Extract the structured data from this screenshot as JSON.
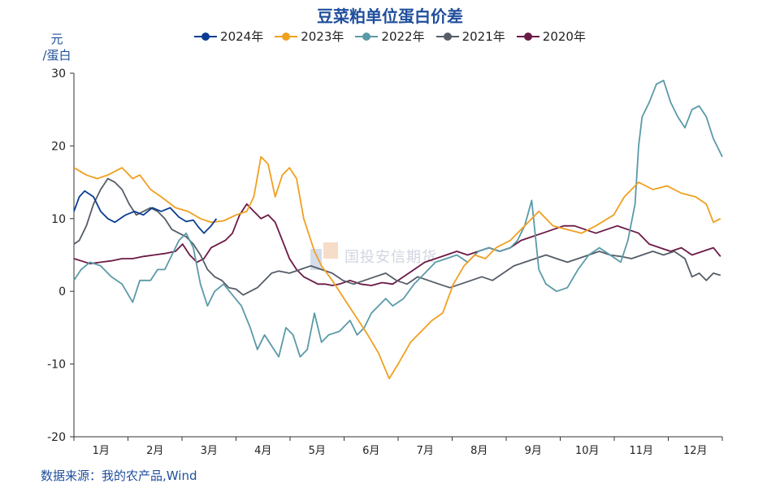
{
  "chart_data": {
    "type": "line",
    "title": "豆菜粕单位蛋白价差",
    "ylabel_line1": "元",
    "ylabel_line2": "/蛋白",
    "ylim": [
      -20,
      30
    ],
    "yticks": [
      -20,
      -10,
      0,
      10,
      20,
      30
    ],
    "months": [
      "1月",
      "2月",
      "3月",
      "4月",
      "5月",
      "6月",
      "7月",
      "8月",
      "9月",
      "10月",
      "11月",
      "12月"
    ],
    "x_unit": "day of year (1-365)",
    "grid": false,
    "legend_position": "top",
    "series": [
      {
        "name": "2024年",
        "color": "#0a3d91",
        "points": [
          [
            1,
            11
          ],
          [
            4,
            13
          ],
          [
            7,
            13.8
          ],
          [
            12,
            13
          ],
          [
            16,
            11
          ],
          [
            20,
            10
          ],
          [
            24,
            9.5
          ],
          [
            30,
            10.5
          ],
          [
            35,
            11
          ],
          [
            40,
            10.5
          ],
          [
            45,
            11.5
          ],
          [
            50,
            11
          ],
          [
            55,
            11.5
          ],
          [
            60,
            10.2
          ],
          [
            64,
            9.6
          ],
          [
            68,
            9.8
          ],
          [
            71,
            8.8
          ],
          [
            74,
            8
          ],
          [
            78,
            9
          ],
          [
            81,
            10
          ]
        ]
      },
      {
        "name": "2023年",
        "color": "#f0a020",
        "points": [
          [
            1,
            17
          ],
          [
            8,
            16
          ],
          [
            14,
            15.5
          ],
          [
            20,
            16
          ],
          [
            28,
            17
          ],
          [
            34,
            15.5
          ],
          [
            38,
            16
          ],
          [
            44,
            14
          ],
          [
            50,
            13
          ],
          [
            58,
            11.5
          ],
          [
            65,
            11
          ],
          [
            72,
            10
          ],
          [
            78,
            9.5
          ],
          [
            85,
            9.7
          ],
          [
            92,
            10.5
          ],
          [
            98,
            11
          ],
          [
            102,
            13
          ],
          [
            106,
            18.5
          ],
          [
            110,
            17.5
          ],
          [
            114,
            13
          ],
          [
            118,
            16
          ],
          [
            122,
            17
          ],
          [
            126,
            15.5
          ],
          [
            130,
            10
          ],
          [
            136,
            5.5
          ],
          [
            140,
            3.5
          ],
          [
            146,
            1.5
          ],
          [
            150,
            0
          ],
          [
            154,
            -1.5
          ],
          [
            158,
            -3
          ],
          [
            162,
            -4.5
          ],
          [
            166,
            -6
          ],
          [
            172,
            -8.5
          ],
          [
            178,
            -12
          ],
          [
            183,
            -10
          ],
          [
            190,
            -7
          ],
          [
            196,
            -5.5
          ],
          [
            202,
            -4
          ],
          [
            208,
            -3
          ],
          [
            214,
            1
          ],
          [
            220,
            3.5
          ],
          [
            226,
            5
          ],
          [
            232,
            4.5
          ],
          [
            238,
            6
          ],
          [
            246,
            7
          ],
          [
            254,
            9
          ],
          [
            262,
            11
          ],
          [
            270,
            9
          ],
          [
            278,
            8.5
          ],
          [
            286,
            8
          ],
          [
            294,
            9
          ],
          [
            304,
            10.5
          ],
          [
            310,
            13
          ],
          [
            318,
            15
          ],
          [
            326,
            14
          ],
          [
            334,
            14.5
          ],
          [
            342,
            13.5
          ],
          [
            350,
            13
          ],
          [
            356,
            12
          ],
          [
            360,
            9.5
          ],
          [
            364,
            10
          ]
        ]
      },
      {
        "name": "2022年",
        "color": "#5a9aa8",
        "points": [
          [
            1,
            1.5
          ],
          [
            5,
            3
          ],
          [
            10,
            4
          ],
          [
            16,
            3.5
          ],
          [
            22,
            2
          ],
          [
            28,
            1
          ],
          [
            34,
            -1.5
          ],
          [
            38,
            1.5
          ],
          [
            44,
            1.5
          ],
          [
            48,
            3
          ],
          [
            52,
            3
          ],
          [
            56,
            5
          ],
          [
            60,
            7
          ],
          [
            64,
            8
          ],
          [
            68,
            6
          ],
          [
            72,
            1
          ],
          [
            76,
            -2
          ],
          [
            80,
            0
          ],
          [
            85,
            1
          ],
          [
            90,
            -0.5
          ],
          [
            95,
            -2
          ],
          [
            100,
            -5
          ],
          [
            104,
            -8
          ],
          [
            108,
            -6
          ],
          [
            112,
            -7.5
          ],
          [
            116,
            -9
          ],
          [
            120,
            -5
          ],
          [
            124,
            -6
          ],
          [
            128,
            -9
          ],
          [
            132,
            -8
          ],
          [
            136,
            -3
          ],
          [
            140,
            -7
          ],
          [
            144,
            -6
          ],
          [
            150,
            -5.5
          ],
          [
            156,
            -4
          ],
          [
            160,
            -6
          ],
          [
            164,
            -5
          ],
          [
            168,
            -3
          ],
          [
            172,
            -2
          ],
          [
            176,
            -1
          ],
          [
            180,
            -2
          ],
          [
            186,
            -1
          ],
          [
            192,
            1
          ],
          [
            198,
            2.5
          ],
          [
            204,
            4
          ],
          [
            210,
            4.5
          ],
          [
            216,
            5
          ],
          [
            222,
            4
          ],
          [
            228,
            5.5
          ],
          [
            234,
            6
          ],
          [
            240,
            5.5
          ],
          [
            246,
            6
          ],
          [
            250,
            7
          ],
          [
            254,
            9
          ],
          [
            258,
            12.5
          ],
          [
            262,
            3
          ],
          [
            266,
            1
          ],
          [
            272,
            0
          ],
          [
            278,
            0.5
          ],
          [
            284,
            3
          ],
          [
            290,
            5
          ],
          [
            296,
            6
          ],
          [
            302,
            5
          ],
          [
            308,
            4
          ],
          [
            312,
            7
          ],
          [
            316,
            12
          ],
          [
            318,
            20
          ],
          [
            320,
            24
          ],
          [
            324,
            26
          ],
          [
            328,
            28.5
          ],
          [
            332,
            29
          ],
          [
            336,
            26
          ],
          [
            340,
            24
          ],
          [
            344,
            22.5
          ],
          [
            348,
            25
          ],
          [
            352,
            25.5
          ],
          [
            356,
            24
          ],
          [
            360,
            21
          ],
          [
            363,
            19.5
          ],
          [
            365,
            18.5
          ]
        ]
      },
      {
        "name": "2021年",
        "color": "#555d67",
        "points": [
          [
            1,
            6.5
          ],
          [
            4,
            7
          ],
          [
            8,
            9
          ],
          [
            12,
            12
          ],
          [
            16,
            14
          ],
          [
            20,
            15.5
          ],
          [
            24,
            15
          ],
          [
            28,
            14
          ],
          [
            32,
            12
          ],
          [
            36,
            10.5
          ],
          [
            40,
            11
          ],
          [
            44,
            11.5
          ],
          [
            48,
            11
          ],
          [
            52,
            10
          ],
          [
            56,
            8.5
          ],
          [
            60,
            8
          ],
          [
            64,
            7.5
          ],
          [
            68,
            6.5
          ],
          [
            72,
            5
          ],
          [
            76,
            3
          ],
          [
            80,
            2
          ],
          [
            84,
            1.5
          ],
          [
            88,
            0.5
          ],
          [
            92,
            0.3
          ],
          [
            96,
            -0.5
          ],
          [
            100,
            0
          ],
          [
            104,
            0.5
          ],
          [
            108,
            1.5
          ],
          [
            112,
            2.5
          ],
          [
            116,
            2.8
          ],
          [
            122,
            2.5
          ],
          [
            128,
            3
          ],
          [
            134,
            3.5
          ],
          [
            140,
            3
          ],
          [
            146,
            2.5
          ],
          [
            152,
            1.5
          ],
          [
            158,
            1
          ],
          [
            164,
            1.5
          ],
          [
            170,
            2
          ],
          [
            176,
            2.5
          ],
          [
            182,
            1.5
          ],
          [
            188,
            1
          ],
          [
            194,
            2
          ],
          [
            200,
            1.5
          ],
          [
            206,
            1
          ],
          [
            212,
            0.5
          ],
          [
            218,
            1
          ],
          [
            224,
            1.5
          ],
          [
            230,
            2
          ],
          [
            236,
            1.5
          ],
          [
            242,
            2.5
          ],
          [
            248,
            3.5
          ],
          [
            254,
            4
          ],
          [
            260,
            4.5
          ],
          [
            266,
            5
          ],
          [
            272,
            4.5
          ],
          [
            278,
            4
          ],
          [
            284,
            4.5
          ],
          [
            290,
            5
          ],
          [
            296,
            5.5
          ],
          [
            302,
            5
          ],
          [
            308,
            4.8
          ],
          [
            314,
            4.5
          ],
          [
            320,
            5
          ],
          [
            326,
            5.5
          ],
          [
            332,
            5
          ],
          [
            338,
            5.5
          ],
          [
            344,
            4.5
          ],
          [
            348,
            2
          ],
          [
            352,
            2.5
          ],
          [
            356,
            1.5
          ],
          [
            360,
            2.5
          ],
          [
            364,
            2.2
          ]
        ]
      },
      {
        "name": "2020年",
        "color": "#6b1a45",
        "points": [
          [
            1,
            4.5
          ],
          [
            5,
            4.2
          ],
          [
            10,
            3.8
          ],
          [
            16,
            4
          ],
          [
            22,
            4.2
          ],
          [
            28,
            4.5
          ],
          [
            34,
            4.5
          ],
          [
            40,
            4.8
          ],
          [
            46,
            5
          ],
          [
            52,
            5.2
          ],
          [
            58,
            5.5
          ],
          [
            62,
            6.5
          ],
          [
            66,
            5
          ],
          [
            70,
            4
          ],
          [
            74,
            4.5
          ],
          [
            78,
            6
          ],
          [
            82,
            6.5
          ],
          [
            86,
            7
          ],
          [
            90,
            8
          ],
          [
            94,
            10.5
          ],
          [
            98,
            12
          ],
          [
            102,
            11
          ],
          [
            106,
            10
          ],
          [
            110,
            10.5
          ],
          [
            114,
            9.5
          ],
          [
            118,
            7
          ],
          [
            122,
            4.5
          ],
          [
            126,
            3
          ],
          [
            130,
            2
          ],
          [
            134,
            1.5
          ],
          [
            138,
            1
          ],
          [
            142,
            1
          ],
          [
            146,
            0.8
          ],
          [
            150,
            1
          ],
          [
            156,
            1.5
          ],
          [
            162,
            1
          ],
          [
            168,
            0.8
          ],
          [
            174,
            1.2
          ],
          [
            180,
            1
          ],
          [
            186,
            2
          ],
          [
            192,
            3
          ],
          [
            198,
            4
          ],
          [
            204,
            4.5
          ],
          [
            210,
            5
          ],
          [
            216,
            5.5
          ],
          [
            222,
            5
          ],
          [
            228,
            5.5
          ],
          [
            234,
            6
          ],
          [
            240,
            5.5
          ],
          [
            246,
            6
          ],
          [
            252,
            7
          ],
          [
            258,
            7.5
          ],
          [
            264,
            8
          ],
          [
            270,
            8.5
          ],
          [
            276,
            9
          ],
          [
            282,
            9
          ],
          [
            288,
            8.5
          ],
          [
            294,
            8
          ],
          [
            300,
            8.5
          ],
          [
            306,
            9
          ],
          [
            312,
            8.5
          ],
          [
            318,
            8
          ],
          [
            324,
            6.5
          ],
          [
            330,
            6
          ],
          [
            336,
            5.5
          ],
          [
            342,
            6
          ],
          [
            348,
            5
          ],
          [
            354,
            5.5
          ],
          [
            360,
            6
          ],
          [
            364,
            4.8
          ]
        ]
      }
    ]
  },
  "source_text": "数据来源：我的农产品,Wind",
  "watermark_text": "国投安信期货"
}
